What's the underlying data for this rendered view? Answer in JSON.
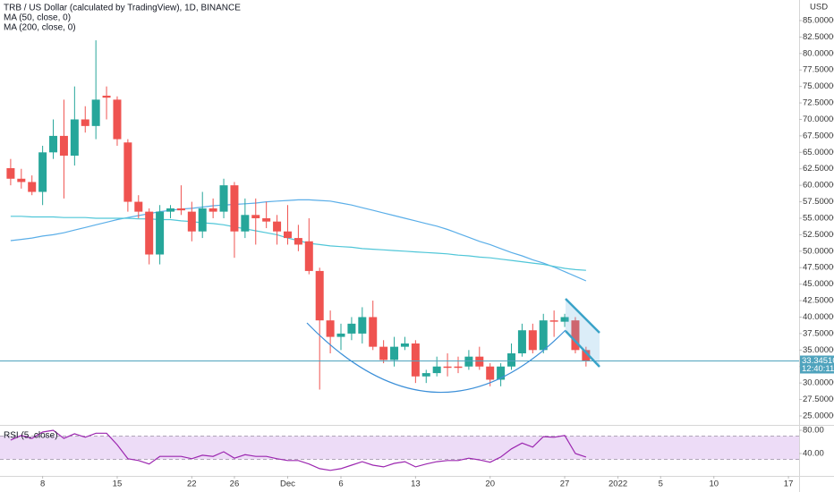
{
  "chart_data": [
    {
      "type": "candlestick",
      "title": "TRB / US Dollar (calculated by TradingView), 1D, BINANCE",
      "y_label": "USD",
      "x": [
        "2021-11-05",
        "2021-11-06",
        "2021-11-07",
        "2021-11-08",
        "2021-11-09",
        "2021-11-10",
        "2021-11-11",
        "2021-11-12",
        "2021-11-13",
        "2021-11-14",
        "2021-11-15",
        "2021-11-16",
        "2021-11-17",
        "2021-11-18",
        "2021-11-19",
        "2021-11-20",
        "2021-11-21",
        "2021-11-22",
        "2021-11-23",
        "2021-11-24",
        "2021-11-25",
        "2021-11-26",
        "2021-11-27",
        "2021-11-28",
        "2021-11-29",
        "2021-11-30",
        "2021-12-01",
        "2021-12-02",
        "2021-12-03",
        "2021-12-04",
        "2021-12-05",
        "2021-12-06",
        "2021-12-07",
        "2021-12-08",
        "2021-12-09",
        "2021-12-10",
        "2021-12-11",
        "2021-12-12",
        "2021-12-13",
        "2021-12-14",
        "2021-12-15",
        "2021-12-16",
        "2021-12-17",
        "2021-12-18",
        "2021-12-19",
        "2021-12-20",
        "2021-12-21",
        "2021-12-22",
        "2021-12-23",
        "2021-12-24",
        "2021-12-25",
        "2021-12-26",
        "2021-12-27",
        "2021-12-28",
        "2021-12-29"
      ],
      "open": [
        62.6,
        61,
        60.5,
        59,
        65,
        67.5,
        64.5,
        70,
        69,
        73.6,
        73,
        66.5,
        57.5,
        56,
        49.5,
        56,
        56.5,
        56,
        53,
        56.5,
        56,
        60,
        53,
        55.5,
        55,
        54.5,
        53,
        52,
        51.5,
        47,
        39.5,
        37,
        37.5,
        37.5,
        40,
        35.5,
        33.5,
        35.5,
        36,
        31,
        31.5,
        32.5,
        32.5,
        32.5,
        34,
        32.5,
        30.5,
        32.5,
        34.5,
        38,
        35,
        39.5,
        39.3,
        39.5,
        35
      ],
      "high": [
        64,
        62.5,
        61.5,
        66,
        70,
        73,
        75,
        72,
        82,
        75,
        73.5,
        67,
        58.5,
        56.5,
        57,
        57,
        60,
        57.5,
        59,
        58,
        61,
        60.5,
        58,
        58,
        57.5,
        55.5,
        57,
        54,
        55,
        47.5,
        41,
        39,
        40,
        41.5,
        42.5,
        36.5,
        37,
        37,
        36.5,
        32,
        34,
        34.5,
        34,
        35,
        35.5,
        33,
        33,
        36,
        39,
        39,
        40.5,
        41,
        40.5,
        40,
        35.5
      ],
      "low": [
        60,
        59.5,
        58.5,
        57,
        64,
        58,
        63,
        68,
        67,
        70,
        66,
        56,
        55,
        48,
        48,
        55,
        55.5,
        51.5,
        52,
        55,
        55,
        49,
        52,
        51,
        53.5,
        51,
        51,
        50,
        46.5,
        29,
        34.5,
        35,
        36.5,
        36,
        35,
        33,
        32.5,
        35,
        30,
        30,
        31,
        31,
        31.5,
        32,
        32,
        29.5,
        29.5,
        32,
        34,
        34.5,
        34.5,
        37,
        38.5,
        34.5,
        32.5
      ],
      "close": [
        61,
        60.5,
        59,
        65,
        67.5,
        64.5,
        70,
        69,
        73,
        73.3,
        67,
        57.5,
        56,
        49.5,
        56,
        56.5,
        56.2,
        53,
        56.5,
        56,
        60,
        53,
        55.5,
        55,
        54.5,
        53,
        52,
        51,
        47,
        39.5,
        37,
        37.5,
        39,
        40,
        35.5,
        33.5,
        35.5,
        36,
        31,
        31.5,
        32.5,
        32.3,
        32.3,
        34,
        32.5,
        30.5,
        32.5,
        34.5,
        38,
        35,
        39.5,
        39.3,
        40,
        35,
        33.3
      ],
      "up_color": "#26a69a",
      "down_color": "#ef5350",
      "series": [
        {
          "name": "MA (50, close, 0)",
          "color": "#5aaee8",
          "values": [
            51.6,
            51.8,
            52,
            52.3,
            52.5,
            52.8,
            53.2,
            53.6,
            54,
            54.4,
            54.8,
            55.1,
            55.4,
            55.7,
            56,
            56.2,
            56.4,
            56.5,
            56.7,
            56.9,
            57,
            57.1,
            57.2,
            57.3,
            57.5,
            57.6,
            57.7,
            57.8,
            57.8,
            57.7,
            57.6,
            57.3,
            57,
            56.6,
            56.2,
            55.8,
            55.4,
            55,
            54.6,
            54.2,
            53.8,
            53.3,
            52.7,
            52.1,
            51.5,
            51,
            50.4,
            49.8,
            49.3,
            48.7,
            48.2,
            47.6,
            46.9,
            46.2,
            45.5
          ]
        },
        {
          "name": "MA (200, close, 0)",
          "color": "#4fc6d8",
          "values": [
            55.3,
            55.3,
            55.2,
            55.2,
            55.2,
            55.1,
            55.1,
            55.1,
            55,
            55,
            55,
            55,
            54.9,
            54.9,
            54.8,
            54.8,
            54.6,
            54.5,
            54.3,
            54.2,
            54,
            53.7,
            53.4,
            53.1,
            52.8,
            52.5,
            52,
            51.6,
            51.2,
            51,
            50.8,
            50.7,
            50.6,
            50.4,
            50.3,
            50.2,
            50.1,
            50,
            49.9,
            49.8,
            49.7,
            49.6,
            49.4,
            49.3,
            49.1,
            49,
            48.8,
            48.6,
            48.4,
            48.2,
            48,
            47.7,
            47.4,
            47.2,
            47.1
          ]
        }
      ],
      "xlim": [
        "2021-11-04",
        "2022-01-18"
      ],
      "ylim": [
        23.64,
        88.12
      ],
      "yticks": [
        {
          "value": 25,
          "label": "25.000000"
        },
        {
          "value": 27.5,
          "label": "27.500000"
        },
        {
          "value": 30,
          "label": "30.000000"
        },
        {
          "value": 32.5,
          "label": "32.500000"
        },
        {
          "value": 35,
          "label": "35.000000"
        },
        {
          "value": 37.5,
          "label": "37.500000"
        },
        {
          "value": 40,
          "label": "40.000000"
        },
        {
          "value": 42.5,
          "label": "42.500000"
        },
        {
          "value": 45,
          "label": "45.000000"
        },
        {
          "value": 47.5,
          "label": "47.500000"
        },
        {
          "value": 50,
          "label": "50.000000"
        },
        {
          "value": 52.5,
          "label": "52.500000"
        },
        {
          "value": 55,
          "label": "55.000000"
        },
        {
          "value": 57.5,
          "label": "57.500000"
        },
        {
          "value": 60,
          "label": "60.000000"
        },
        {
          "value": 62.5,
          "label": "62.500000"
        },
        {
          "value": 65,
          "label": "65.000000"
        },
        {
          "value": 67.5,
          "label": "67.500000"
        },
        {
          "value": 70,
          "label": "70.000000"
        },
        {
          "value": 72.5,
          "label": "72.500000"
        },
        {
          "value": 75,
          "label": "75.000000"
        },
        {
          "value": 77.5,
          "label": "77.500000"
        },
        {
          "value": 80,
          "label": "80.000000"
        },
        {
          "value": 82.5,
          "label": "82.500000"
        },
        {
          "value": 85,
          "label": "85.000000"
        }
      ],
      "last_price": {
        "value": 33.3451,
        "label": "33.345100"
      },
      "countdown": "12:40:11",
      "last_price_color": "#4fa3bd"
    },
    {
      "type": "line",
      "x": [
        "2021-11-05",
        "2021-11-06",
        "2021-11-07",
        "2021-11-08",
        "2021-11-09",
        "2021-11-10",
        "2021-11-11",
        "2021-11-12",
        "2021-11-13",
        "2021-11-14",
        "2021-11-15",
        "2021-11-16",
        "2021-11-17",
        "2021-11-18",
        "2021-11-19",
        "2021-11-20",
        "2021-11-21",
        "2021-11-22",
        "2021-11-23",
        "2021-11-24",
        "2021-11-25",
        "2021-11-26",
        "2021-11-27",
        "2021-11-28",
        "2021-11-29",
        "2021-11-30",
        "2021-12-01",
        "2021-12-02",
        "2021-12-03",
        "2021-12-04",
        "2021-12-05",
        "2021-12-06",
        "2021-12-07",
        "2021-12-08",
        "2021-12-09",
        "2021-12-10",
        "2021-12-11",
        "2021-12-12",
        "2021-12-13",
        "2021-12-14",
        "2021-12-15",
        "2021-12-16",
        "2021-12-17",
        "2021-12-18",
        "2021-12-19",
        "2021-12-20",
        "2021-12-21",
        "2021-12-22",
        "2021-12-23",
        "2021-12-24",
        "2021-12-25",
        "2021-12-26",
        "2021-12-27",
        "2021-12-28",
        "2021-12-29"
      ],
      "series": [
        {
          "name": "RSI (5, close)",
          "color": "#9c27b0",
          "values": [
            63,
            71,
            66,
            77,
            80,
            66,
            74,
            68,
            75,
            75,
            55,
            31,
            28,
            22,
            35,
            35,
            35,
            31,
            37,
            35,
            43,
            32,
            38,
            35,
            35,
            31,
            28,
            28,
            22,
            14,
            11,
            14,
            20,
            26,
            20,
            17,
            23,
            26,
            17,
            22,
            26,
            28,
            28,
            32,
            29,
            25,
            34,
            48,
            58,
            51,
            69,
            68,
            71,
            40,
            34
          ]
        }
      ],
      "band": [
        30,
        70
      ],
      "band_color": "#eddcf7",
      "xlim": [
        "2021-11-04",
        "2022-01-18"
      ],
      "ylim": [
        1.5,
        87.7
      ],
      "yticks": [
        {
          "value": 40,
          "label": "40.00"
        },
        {
          "value": 80,
          "label": "80.00"
        }
      ],
      "xticks": [
        {
          "value": "2021-11-08",
          "label": "8"
        },
        {
          "value": "2021-11-15",
          "label": "15"
        },
        {
          "value": "2021-11-22",
          "label": "22"
        },
        {
          "value": "2021-11-26",
          "label": "26"
        },
        {
          "value": "2021-12-01",
          "label": "Dec"
        },
        {
          "value": "2021-12-06",
          "label": "6"
        },
        {
          "value": "2021-12-13",
          "label": "13"
        },
        {
          "value": "2021-12-20",
          "label": "20"
        },
        {
          "value": "2021-12-27",
          "label": "27"
        },
        {
          "value": "2022-01-01",
          "label": "2022"
        },
        {
          "value": "2022-01-05",
          "label": "5"
        },
        {
          "value": "2022-01-10",
          "label": "10"
        },
        {
          "value": "2022-01-17",
          "label": "17"
        }
      ]
    }
  ]
}
